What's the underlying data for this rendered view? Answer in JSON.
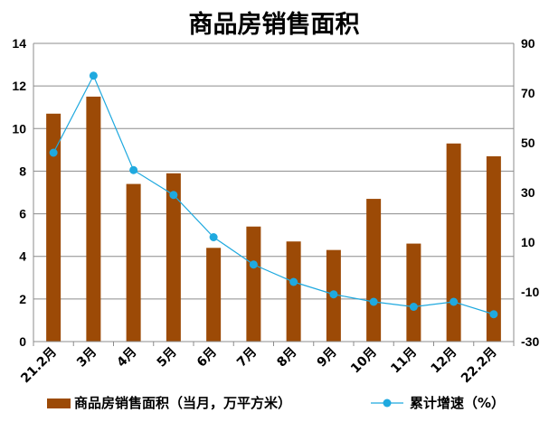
{
  "chart_data": {
    "type": "bar",
    "title": "商品房销售面积",
    "categories": [
      "21.2月",
      "3月",
      "4月",
      "5月",
      "6月",
      "7月",
      "8月",
      "9月",
      "10月",
      "11月",
      "12月",
      "22.2月"
    ],
    "series": [
      {
        "name": "商品房销售面积（当月，万平方米）",
        "type": "bar",
        "axis": "left",
        "color": "#9C4A06",
        "values": [
          10.7,
          11.5,
          7.4,
          7.9,
          4.4,
          5.4,
          4.7,
          4.3,
          6.7,
          4.6,
          9.3,
          8.7
        ]
      },
      {
        "name": "累计增速（%）",
        "type": "line",
        "axis": "right",
        "color": "#1FA9DF",
        "values": [
          46,
          77,
          39,
          29,
          12,
          1,
          -6,
          -11,
          -14,
          -16,
          -14,
          -19
        ]
      }
    ],
    "y_left": {
      "min": 0,
      "max": 14,
      "ticks": [
        "0",
        "2",
        "4",
        "6",
        "8",
        "10",
        "12",
        "14"
      ]
    },
    "y_right": {
      "min": -30,
      "max": 90,
      "ticks": [
        "-30",
        "-10",
        "10",
        "30",
        "50",
        "70",
        "90"
      ]
    },
    "grid": true,
    "legend_position": "bottom"
  }
}
